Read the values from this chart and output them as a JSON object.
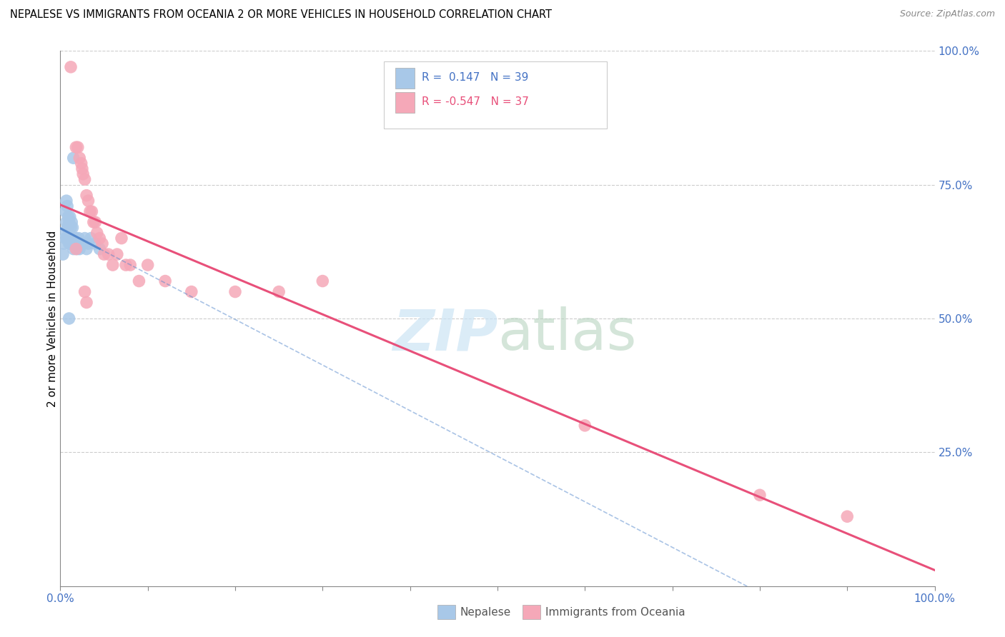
{
  "title": "NEPALESE VS IMMIGRANTS FROM OCEANIA 2 OR MORE VEHICLES IN HOUSEHOLD CORRELATION CHART",
  "source": "Source: ZipAtlas.com",
  "ylabel": "2 or more Vehicles in Household",
  "r_nepalese": 0.147,
  "n_nepalese": 39,
  "r_oceania": -0.547,
  "n_oceania": 37,
  "nepalese_color": "#a8c8e8",
  "oceania_color": "#f5a8b8",
  "nepalese_line_color": "#5588cc",
  "oceania_line_color": "#e8507a",
  "xmin": 0.0,
  "xmax": 1.0,
  "ymin": 0.0,
  "ymax": 1.0,
  "nepalese_x": [
    0.003,
    0.004,
    0.005,
    0.006,
    0.006,
    0.007,
    0.007,
    0.008,
    0.008,
    0.009,
    0.009,
    0.01,
    0.01,
    0.011,
    0.011,
    0.012,
    0.012,
    0.013,
    0.013,
    0.014,
    0.014,
    0.015,
    0.016,
    0.017,
    0.018,
    0.019,
    0.02,
    0.021,
    0.022,
    0.025,
    0.026,
    0.028,
    0.03,
    0.032,
    0.035,
    0.04,
    0.045,
    0.015,
    0.01
  ],
  "nepalese_y": [
    0.62,
    0.64,
    0.66,
    0.65,
    0.7,
    0.68,
    0.72,
    0.67,
    0.71,
    0.65,
    0.69,
    0.64,
    0.68,
    0.65,
    0.69,
    0.64,
    0.67,
    0.65,
    0.68,
    0.64,
    0.67,
    0.63,
    0.65,
    0.64,
    0.65,
    0.63,
    0.64,
    0.65,
    0.63,
    0.64,
    0.64,
    0.65,
    0.63,
    0.64,
    0.65,
    0.64,
    0.63,
    0.8,
    0.5
  ],
  "oceania_x": [
    0.012,
    0.018,
    0.02,
    0.022,
    0.024,
    0.025,
    0.026,
    0.028,
    0.03,
    0.032,
    0.034,
    0.036,
    0.038,
    0.04,
    0.042,
    0.045,
    0.048,
    0.05,
    0.055,
    0.06,
    0.065,
    0.07,
    0.075,
    0.08,
    0.09,
    0.1,
    0.12,
    0.15,
    0.2,
    0.25,
    0.3,
    0.6,
    0.8,
    0.9,
    0.028,
    0.03,
    0.018
  ],
  "oceania_y": [
    0.97,
    0.82,
    0.82,
    0.8,
    0.79,
    0.78,
    0.77,
    0.76,
    0.73,
    0.72,
    0.7,
    0.7,
    0.68,
    0.68,
    0.66,
    0.65,
    0.64,
    0.62,
    0.62,
    0.6,
    0.62,
    0.65,
    0.6,
    0.6,
    0.57,
    0.6,
    0.57,
    0.55,
    0.55,
    0.55,
    0.57,
    0.3,
    0.17,
    0.13,
    0.55,
    0.53,
    0.63
  ]
}
